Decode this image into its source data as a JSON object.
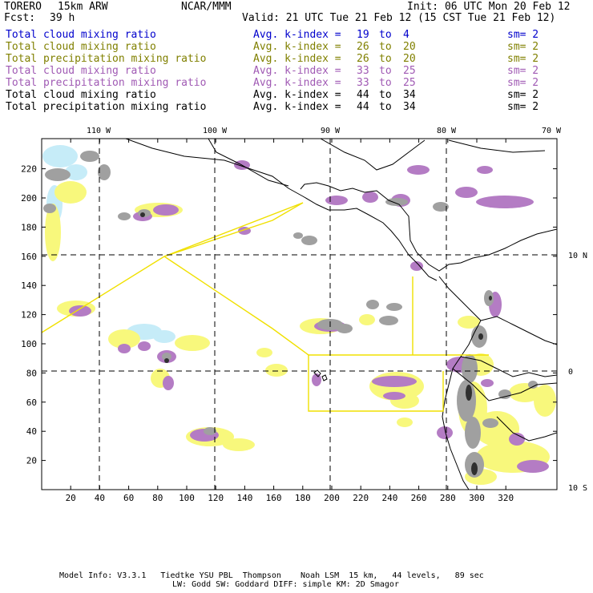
{
  "header": {
    "model": "TORERO",
    "config": "15km ARW",
    "org": "NCAR/MMM",
    "init": "Init: 06 UTC Mon 20 Feb 12",
    "fcst_label": "Fcst:",
    "fcst_value": "39 h",
    "valid": "Valid: 21 UTC Tue 21 Feb 12 (15 CST Tue 21 Feb 12)"
  },
  "legend": [
    {
      "field": "Total cloud mixing ratio",
      "kindex": "Avg. k-index =",
      "k1": "19",
      "to": "to",
      "k2": "4",
      "sm": "sm= 2",
      "color": "#0000cc"
    },
    {
      "field": "Total cloud mixing ratio",
      "kindex": "Avg. k-index =",
      "k1": "26",
      "to": "to",
      "k2": "20",
      "sm": "sm= 2",
      "color": "#808000"
    },
    {
      "field": "Total precipitation mixing ratio",
      "kindex": "Avg. k-index =",
      "k1": "26",
      "to": "to",
      "k2": "20",
      "sm": "sm= 2",
      "color": "#808000"
    },
    {
      "field": "Total cloud mixing ratio",
      "kindex": "Avg. k-index =",
      "k1": "33",
      "to": "to",
      "k2": "25",
      "sm": "sm= 2",
      "color": "#a05ab4"
    },
    {
      "field": "Total precipitation mixing ratio",
      "kindex": "Avg. k-index =",
      "k1": "33",
      "to": "to",
      "k2": "25",
      "sm": "sm= 2",
      "color": "#a05ab4"
    },
    {
      "field": "Total cloud mixing ratio",
      "kindex": "Avg. k-index =",
      "k1": "44",
      "to": "to",
      "k2": "34",
      "sm": "sm= 2",
      "color": "#000000"
    },
    {
      "field": "Total precipitation mixing ratio",
      "kindex": "Avg. k-index =",
      "k1": "44",
      "to": "to",
      "k2": "34",
      "sm": "sm= 2",
      "color": "#000000"
    }
  ],
  "map": {
    "lon_labels": [
      "110 W",
      "100 W",
      "90 W",
      "80 W",
      "70 W"
    ],
    "lat_labels": [
      "10 N",
      "0",
      "10 S"
    ],
    "x_ticks": [
      "20",
      "40",
      "60",
      "80",
      "100",
      "120",
      "140",
      "160",
      "180",
      "200",
      "220",
      "240",
      "260",
      "280",
      "300",
      "320"
    ],
    "y_ticks": [
      "220",
      "200",
      "180",
      "160",
      "140",
      "120",
      "100",
      "80",
      "60",
      "40",
      "20"
    ],
    "colors": {
      "light_blue": "#c6ecf8",
      "yellow": "#f8f87c",
      "purple": "#b47cc4",
      "gray": "#a0a0a0",
      "dark": "#303030",
      "boundary_yellow": "#f0e000"
    }
  },
  "footer": {
    "line1": "Model Info: V3.3.1   Tiedtke YSU PBL  Thompson    Noah LSM  15 km,   44 levels,   89 sec",
    "line2": "LW: Godd SW: Goddard DIFF: simple KM: 2D Smagor"
  }
}
